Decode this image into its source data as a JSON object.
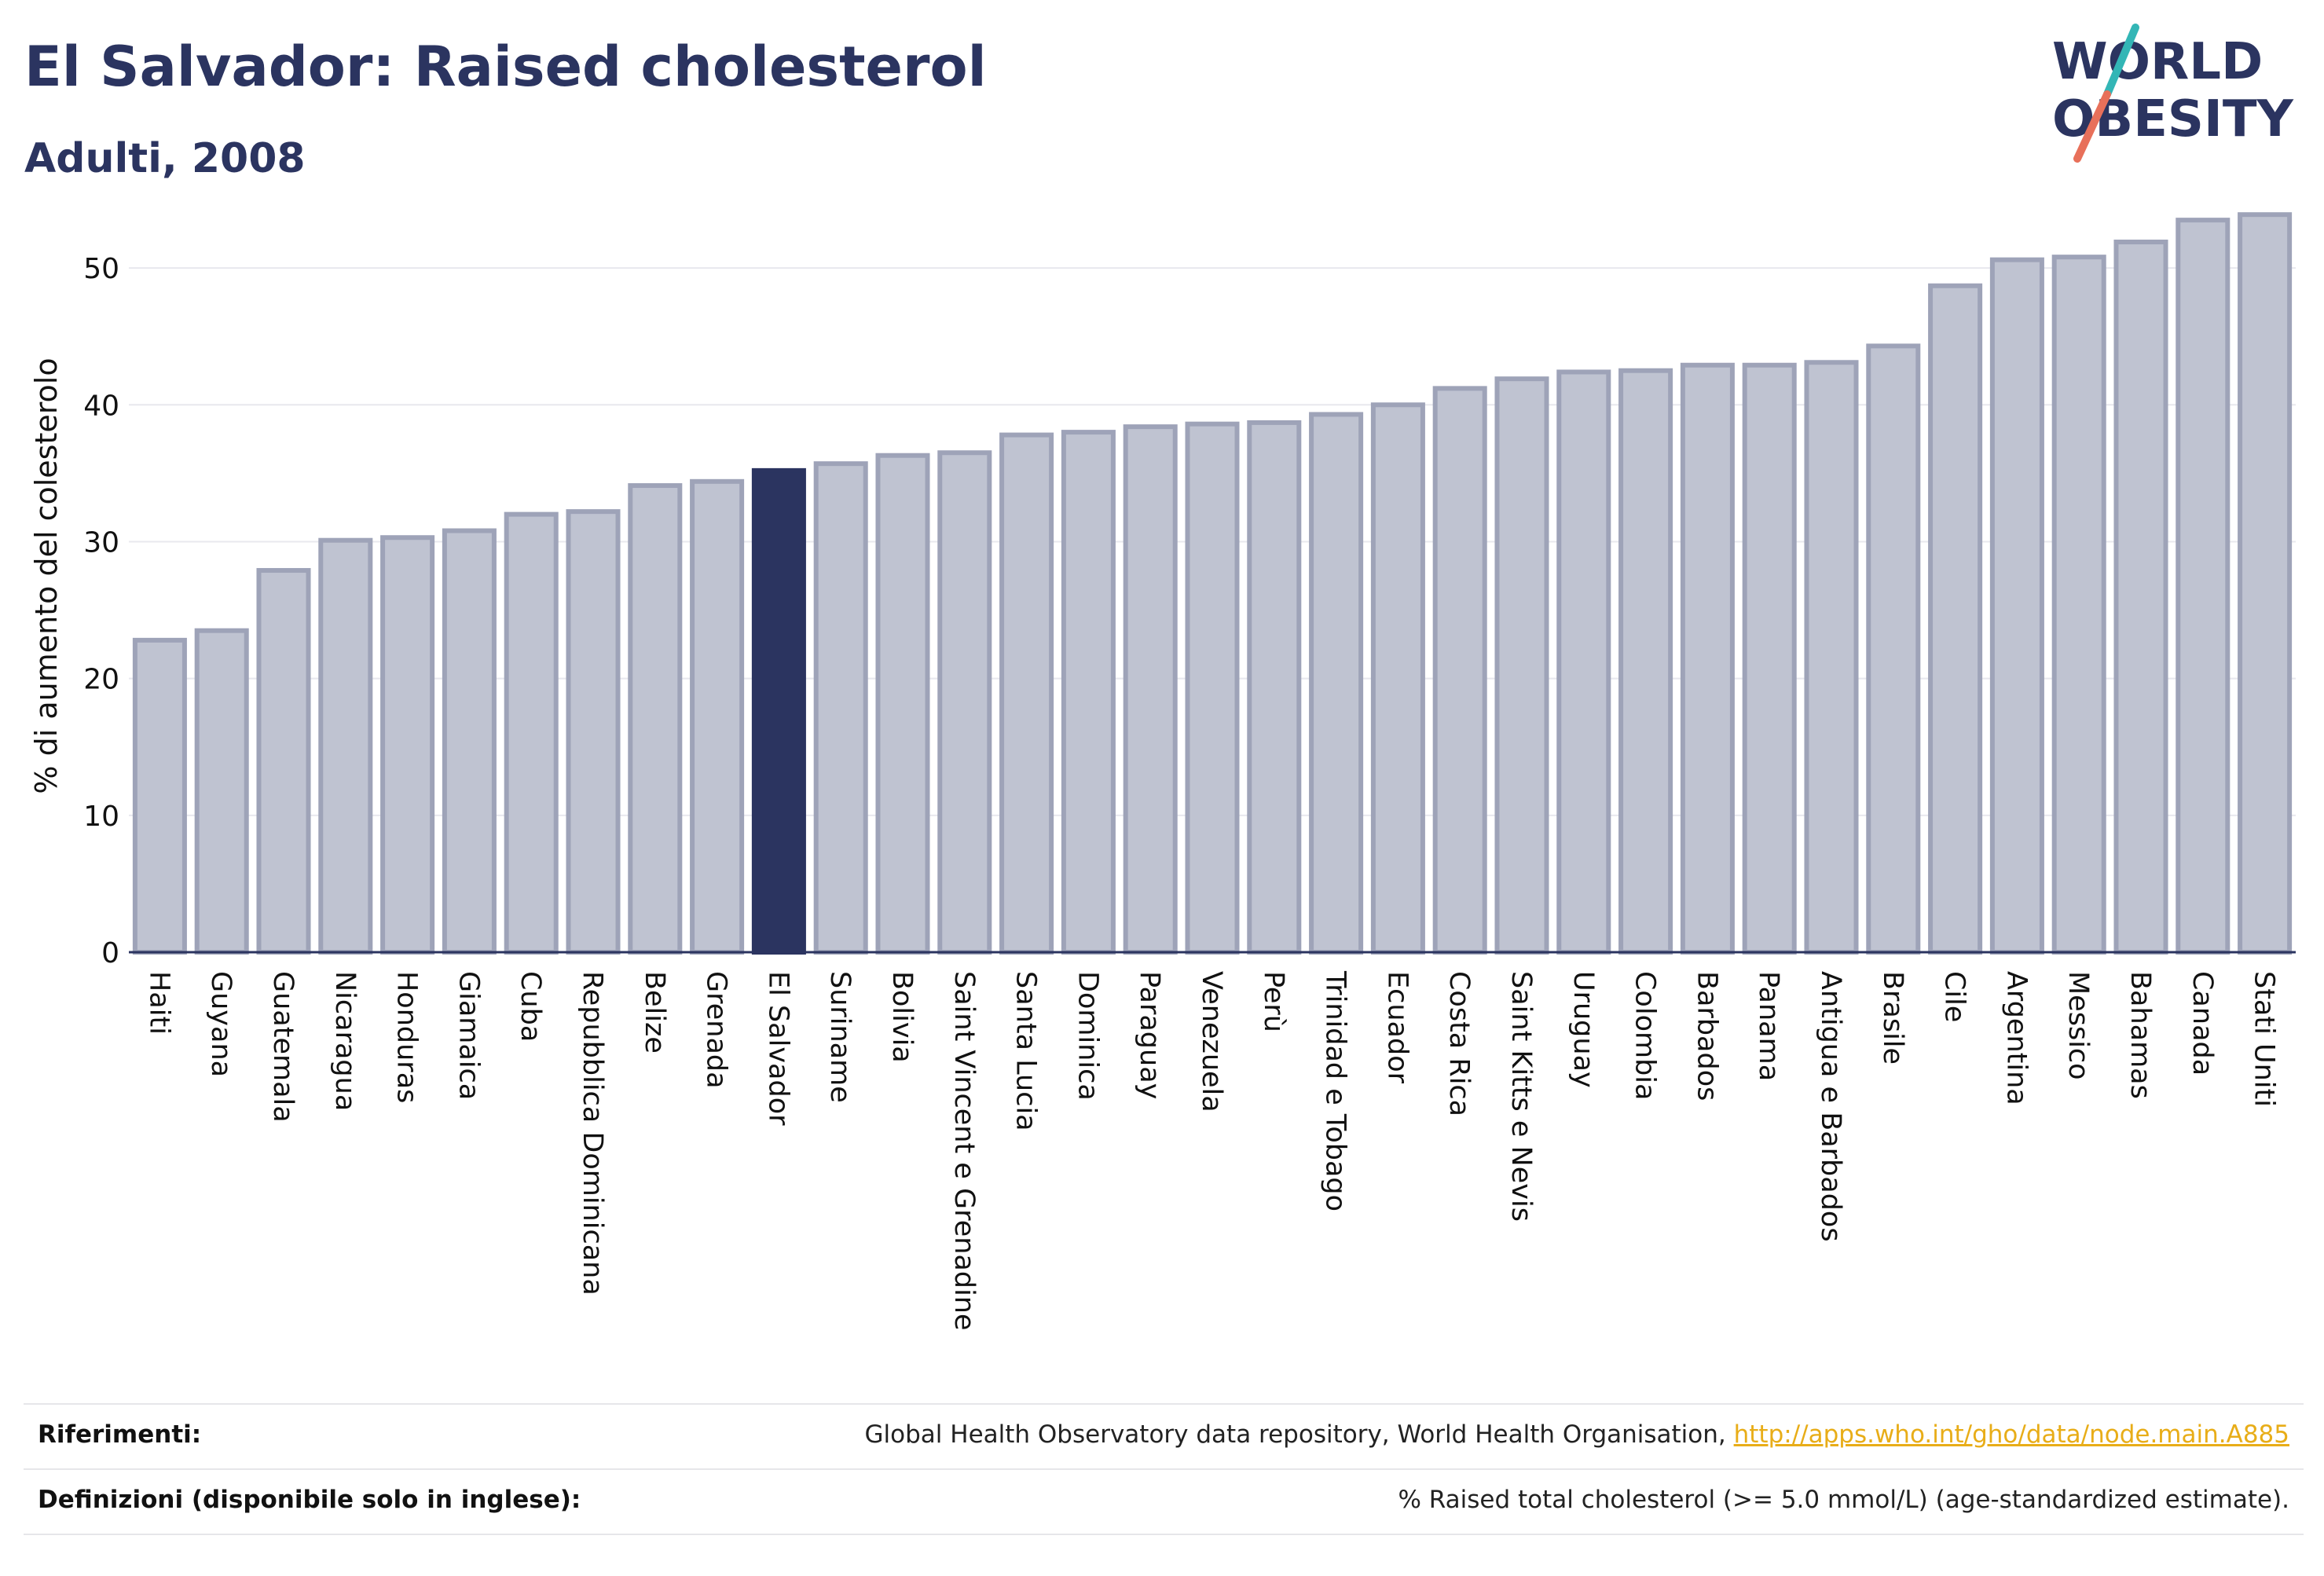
{
  "header": {
    "title": "El Salvador: Raised cholesterol",
    "subtitle": "Adulti, 2008"
  },
  "logo": {
    "line1": "WORLD",
    "line2": "OBESITY",
    "colors": {
      "text": "#2b3460",
      "slash_teal": "#33b6b6",
      "slash_coral": "#e8705a"
    }
  },
  "chart_data": {
    "type": "bar",
    "ylabel": "% di aumento del colesterolo",
    "xlabel": "",
    "ylim": [
      0,
      55
    ],
    "yticks": [
      0,
      10,
      20,
      30,
      40,
      50
    ],
    "grid": true,
    "highlight": "El Salvador",
    "colors": {
      "bar": "#bfc3d1",
      "bar_border": "#9ea3b8",
      "highlight": "#2b3460",
      "grid": "#e8e8ee",
      "axis": "#2b3460"
    },
    "categories": [
      "Haiti",
      "Guyana",
      "Guatemala",
      "Nicaragua",
      "Honduras",
      "Giamaica",
      "Cuba",
      "Repubblica Dominicana",
      "Belize",
      "Grenada",
      "El Salvador",
      "Suriname",
      "Bolivia",
      "Saint Vincent e Grenadine",
      "Santa Lucia",
      "Dominica",
      "Paraguay",
      "Venezuela",
      "Perù",
      "Trinidad e Tobago",
      "Ecuador",
      "Costa Rica",
      "Saint Kitts e Nevis",
      "Uruguay",
      "Colombia",
      "Barbados",
      "Panama",
      "Antigua e Barbados",
      "Brasile",
      "Cile",
      "Argentina",
      "Messico",
      "Bahamas",
      "Canada",
      "Stati Uniti"
    ],
    "values": [
      22.8,
      23.5,
      27.9,
      30.1,
      30.3,
      30.8,
      32.0,
      32.2,
      34.1,
      34.4,
      35.2,
      35.7,
      36.3,
      36.5,
      37.8,
      38.0,
      38.4,
      38.6,
      38.7,
      39.3,
      40.0,
      41.2,
      41.9,
      42.4,
      42.5,
      42.9,
      42.9,
      43.1,
      44.3,
      48.7,
      50.6,
      50.8,
      51.9,
      53.5,
      53.9
    ]
  },
  "footer": {
    "references_label": "Riferimenti:",
    "references_text": "Global Health Observatory data repository, World Health Organisation,",
    "references_link": "http://apps.who.int/gho/data/node.main.A885",
    "definitions_label": "Definizioni (disponibile solo in inglese):",
    "definitions_text": "% Raised total cholesterol (>= 5.0 mmol/L) (age-standardized estimate)."
  }
}
